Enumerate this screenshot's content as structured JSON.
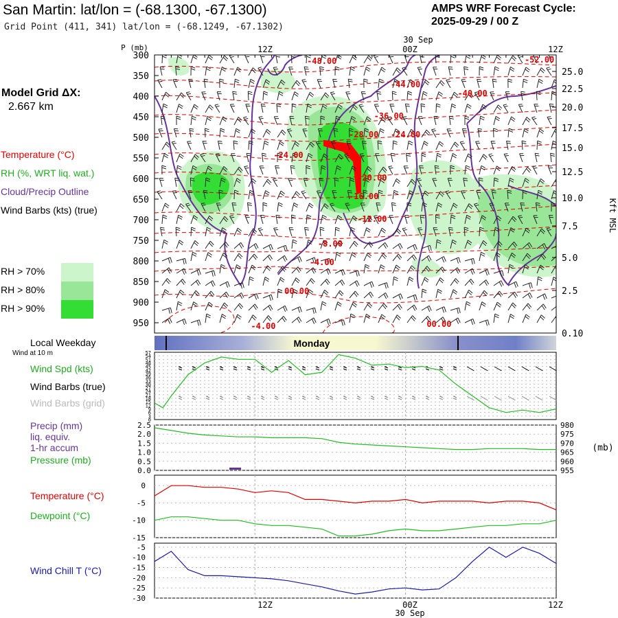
{
  "header": {
    "title": "San Martin:  lat/lon = (-68.1300, -67.1300)",
    "grid_point": "Grid Point (411, 341) lat/lon = (-68.1249, -67.1302)",
    "cycle_label": "AMPS WRF Forecast Cycle:",
    "cycle_value": "2025-09-29 / 00  Z"
  },
  "side": {
    "model_grid_label": "Model Grid ΔX:",
    "model_grid_value": "2.667 km",
    "temperature": "Temperature (°C)",
    "rh": "RH (%, WRT liq. wat.)",
    "cloud": "Cloud/Precip Outline",
    "wind_barbs": "Wind Barbs (kts) (true)",
    "rh70": "RH > 70%",
    "rh80": "RH > 80%",
    "rh90": "RH > 90%",
    "local_weekday": "Local Weekday",
    "wind_at": "Wind at 10 m",
    "wind_spd": "Wind Spd (kts)",
    "wind_barbs_true": "Wind Barbs (true)",
    "wind_barbs_grid": "Wind Barbs (grid)",
    "precip": "Precip (mm)",
    "liq": "liq. equiv.",
    "accum": "1-hr accum",
    "pressure": "Pressure (mb)",
    "temp2": "Temperature (°C)",
    "dewpoint": "Dewpoint (°C)",
    "windchill": "Wind Chill T (°C)"
  },
  "colors": {
    "temperature": "#dd0000",
    "rh": "#22bb22",
    "cloud": "#663399",
    "windchill": "#1a1aaa",
    "rh70": "#ccf5cc",
    "rh80": "#99e699",
    "rh90": "#33dd33",
    "grid": "#aaaaaa"
  },
  "time_axis": {
    "top_labels": [
      "12Z",
      "00Z",
      "12Z"
    ],
    "date_label": "30 Sep",
    "weekday": "Monday"
  },
  "chart_data": [
    {
      "type": "heatmap",
      "description_panel": "vertical cross-section",
      "ylabel": "P (mb)",
      "ylabel_right": "Kft MSL",
      "pressure_ticks": [
        "300",
        "350",
        "400",
        "450",
        "500",
        "550",
        "600",
        "650",
        "700",
        "750",
        "800",
        "850",
        "900",
        "950"
      ],
      "height_ticks": [
        "25.0",
        "22.5",
        "20.0",
        "17.5",
        "15.0",
        "12.5",
        "10.0",
        "7.5",
        "5.0",
        "2.5",
        "0.10"
      ],
      "temperature_labels": [
        {
          "text": "-48.00",
          "t": 10,
          "p": 322
        },
        {
          "text": "-44.00",
          "t": 15,
          "p": 378
        },
        {
          "text": "-40.00",
          "t": 19,
          "p": 400
        },
        {
          "text": "-52.00",
          "t": 23,
          "p": 318
        },
        {
          "text": "-36.00",
          "t": 14,
          "p": 455
        },
        {
          "text": "-28.00",
          "t": 12.5,
          "p": 500
        },
        {
          "text": "-24.00",
          "t": 15,
          "p": 500
        },
        {
          "text": "-24.00",
          "t": 8,
          "p": 550
        },
        {
          "text": "-20.00",
          "t": 13,
          "p": 605
        },
        {
          "text": "-16.00",
          "t": 12.5,
          "p": 650
        },
        {
          "text": "-12.00",
          "t": 13,
          "p": 705
        },
        {
          "text": "-8.00",
          "t": 10.5,
          "p": 765
        },
        {
          "text": "-4.00",
          "t": 10,
          "p": 810
        },
        {
          "text": "00.00",
          "t": 8.5,
          "p": 880
        },
        {
          "text": "-4.00",
          "t": 6.5,
          "p": 965
        },
        {
          "text": "00.00",
          "t": 17,
          "p": 960
        }
      ]
    },
    {
      "type": "line",
      "panel": "wind",
      "ylabel": "Wind Spd (kts)",
      "y_ticks": [
        "57",
        "54",
        "51",
        "48",
        "45",
        "42",
        "39",
        "36",
        "33",
        "30",
        "27",
        "24",
        "21",
        "18",
        "15",
        "12",
        "9",
        "6",
        "3",
        "0"
      ],
      "ylim": [
        0,
        57
      ],
      "x": [
        0,
        0.5,
        1,
        2,
        3,
        4,
        5,
        6,
        7,
        8,
        9,
        10,
        11,
        12,
        13,
        14,
        15,
        16,
        17,
        18,
        19,
        20,
        21,
        22,
        23,
        24
      ],
      "series": [
        {
          "name": "Wind Spd (kts)",
          "values": [
            14,
            10,
            20,
            38,
            48,
            53,
            51,
            51,
            40,
            50,
            38,
            40,
            55,
            52,
            46,
            47,
            44,
            45,
            42,
            30,
            20,
            10,
            6,
            8,
            6,
            9
          ]
        }
      ]
    },
    {
      "type": "line",
      "panel": "precip_pressure",
      "y_ticks_left": [
        "2.5",
        "2.0",
        "1.5",
        "1.0",
        "0.5",
        "0.0"
      ],
      "y_ticks_right": [
        "980",
        "975",
        "970",
        "965",
        "960",
        "955"
      ],
      "right_unit": "(mb)",
      "ylim": [
        955,
        980
      ],
      "x": [
        0,
        1,
        2,
        3,
        4,
        5,
        6,
        7,
        8,
        9,
        10,
        11,
        12,
        13,
        14,
        15,
        16,
        17,
        18,
        19,
        20,
        21,
        22,
        23,
        24
      ],
      "series": [
        {
          "name": "Pressure (mb)",
          "values": [
            978.5,
            977,
            975.5,
            974.5,
            974,
            973.5,
            973.5,
            973,
            973,
            973,
            972.5,
            970.5,
            969.5,
            969,
            968.5,
            968,
            967.5,
            967,
            966.5,
            966.5,
            967,
            967,
            967,
            966.5,
            966.5
          ]
        }
      ],
      "precip_bar": {
        "t": 4.8,
        "value": 0.05
      }
    },
    {
      "type": "line",
      "panel": "temperature",
      "y_ticks": [
        "0",
        "-5",
        "-10",
        "-15"
      ],
      "ylim": [
        -15,
        3
      ],
      "x": [
        0,
        1,
        2,
        3,
        4,
        5,
        6,
        7,
        8,
        9,
        10,
        11,
        12,
        13,
        14,
        15,
        16,
        17,
        18,
        19,
        20,
        21,
        22,
        23,
        24
      ],
      "series": [
        {
          "name": "Temperature (°C)",
          "values": [
            -3,
            0,
            0,
            -0.5,
            -0.5,
            -1,
            -2,
            -1.5,
            -2,
            -4,
            -4,
            -4.5,
            -5,
            -4.5,
            -4.5,
            -4,
            -5,
            -4.5,
            -4.5,
            -4.5,
            -5,
            -4.5,
            -4.5,
            -5,
            -7
          ]
        },
        {
          "name": "Dewpoint (°C)",
          "values": [
            -10,
            -9,
            -9,
            -9.5,
            -10,
            -10,
            -11,
            -11.5,
            -11.5,
            -12,
            -12.5,
            -14.5,
            -14.5,
            -14,
            -13,
            -12.5,
            -13,
            -13,
            -12.5,
            -12,
            -11.5,
            -11.5,
            -11,
            -11,
            -10
          ]
        }
      ]
    },
    {
      "type": "line",
      "panel": "windchill",
      "y_ticks": [
        "-5",
        "-10",
        "-15",
        "-20",
        "-25",
        "-30"
      ],
      "ylim": [
        -30,
        -3
      ],
      "x": [
        0,
        1,
        2,
        3,
        4,
        5,
        6,
        7,
        8,
        9,
        10,
        11,
        12,
        13,
        14,
        15,
        16,
        17,
        18,
        19,
        20,
        21,
        22,
        23,
        24
      ],
      "series": [
        {
          "name": "Wind Chill T (°C)",
          "values": [
            -12,
            -7,
            -16,
            -19,
            -19,
            -19.5,
            -20,
            -20.5,
            -21.5,
            -23,
            -24.5,
            -26.5,
            -28,
            -27,
            -25.5,
            -25,
            -26,
            -25.5,
            -20,
            -12,
            -5,
            -10,
            -5,
            -8,
            -13
          ]
        }
      ]
    }
  ]
}
